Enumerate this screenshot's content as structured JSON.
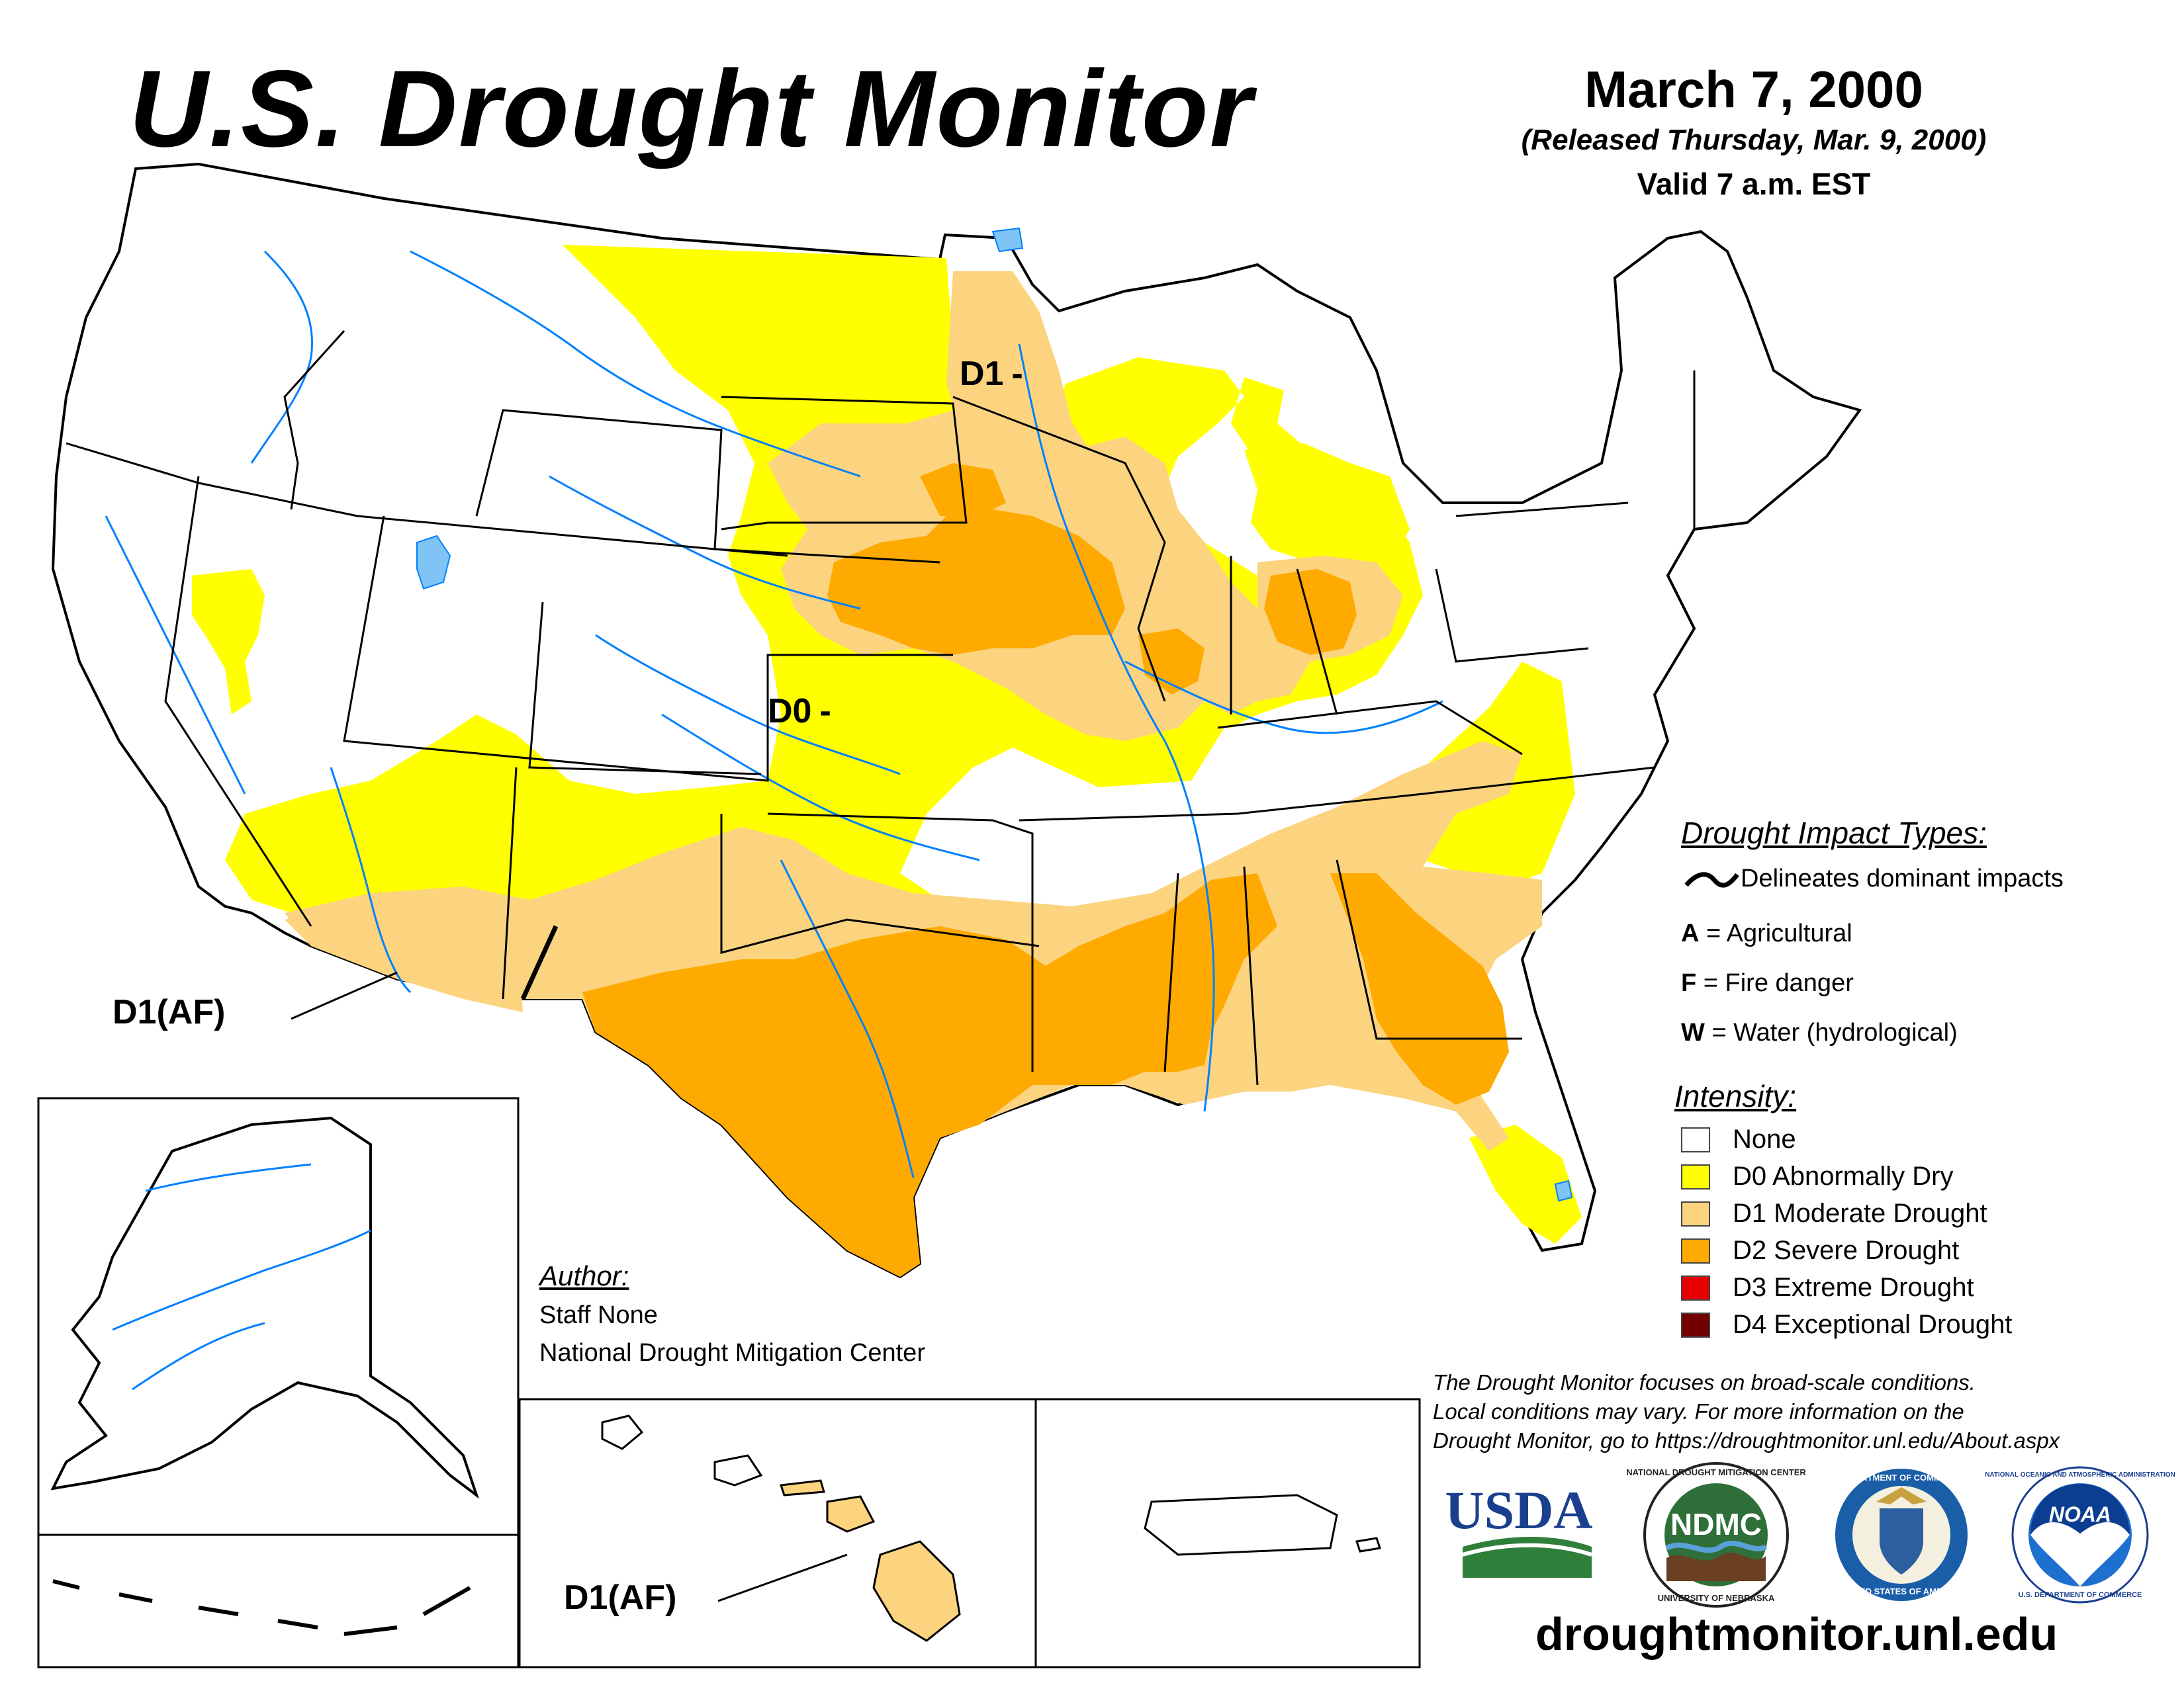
{
  "title": "U.S. Drought Monitor",
  "date": {
    "main": "March 7, 2000",
    "released": "(Released Thursday, Mar. 9, 2000)",
    "valid": "Valid 7 a.m. EST"
  },
  "map_labels": {
    "d1_north": "D1",
    "d0_plains": "D0",
    "d1af_southwest": "D1(AF)",
    "d1af_hawaii": "D1(AF)"
  },
  "impact_types": {
    "title": "Drought Impact Types:",
    "delineates": "Delineates dominant impacts",
    "items": [
      {
        "code": "A",
        "text": "= Agricultural"
      },
      {
        "code": "F",
        "text": "= Fire danger"
      },
      {
        "code": "W",
        "text": "= Water (hydrological)"
      }
    ]
  },
  "intensity": {
    "title": "Intensity:",
    "items": [
      {
        "label": "None",
        "color": "#ffffff"
      },
      {
        "label": "D0 Abnormally Dry",
        "color": "#ffff00"
      },
      {
        "label": "D1 Moderate Drought",
        "color": "#fcd37f"
      },
      {
        "label": "D2 Severe Drought",
        "color": "#ffaa00"
      },
      {
        "label": "D3 Extreme Drought",
        "color": "#e60000"
      },
      {
        "label": "D4 Exceptional Drought",
        "color": "#730000"
      }
    ]
  },
  "author": {
    "title": "Author:",
    "name": "Staff None",
    "org": "National Drought Mitigation Center"
  },
  "disclaimer": [
    "The Drought Monitor focuses on broad-scale conditions.",
    "Local conditions may vary. For more information on the",
    "Drought Monitor, go to https://droughtmonitor.unl.edu/About.aspx"
  ],
  "logos": {
    "usda": "USDA",
    "ndmc": "NDMC",
    "ndmc_ring_top": "NATIONAL DROUGHT MITIGATION CENTER",
    "ndmc_ring_bottom": "UNIVERSITY OF NEBRASKA",
    "commerce_ring_top": "DEPARTMENT OF COMMERCE",
    "commerce_ring_bottom": "UNITED STATES OF AMERICA",
    "noaa": "NOAA",
    "noaa_ring_top": "NATIONAL OCEANIC AND ATMOSPHERIC ADMINISTRATION",
    "noaa_ring_bottom": "U.S. DEPARTMENT OF COMMERCE"
  },
  "website": "droughtmonitor.unl.edu",
  "colors": {
    "d0": "#ffff00",
    "d1": "#fcd37f",
    "d2": "#ffaa00",
    "water": "#0080ff",
    "lake": "#7fc4f4"
  }
}
